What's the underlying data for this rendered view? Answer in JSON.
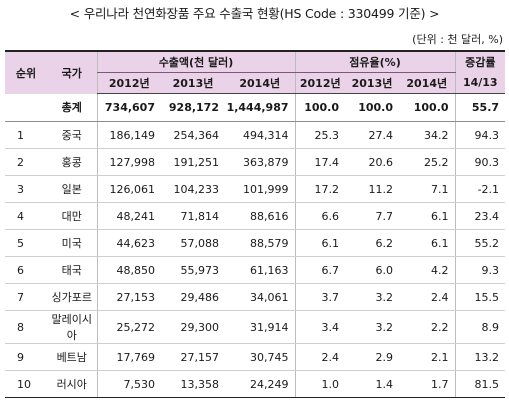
{
  "title": "< 우리나라 천연화장품 주요 수출국 현황(HS Code : 330499 기준) >",
  "unit": "(단위 : 천 달러, %)",
  "headers": {
    "rank": "순위",
    "country": "국가",
    "exports": "수출액(천 달러)",
    "share": "점유율(%)",
    "growth_top": "증감률",
    "growth_bottom": "14/13",
    "y2012": "2012년",
    "y2013": "2013년",
    "y2014": "2014년"
  },
  "total": {
    "label": "총계",
    "values": [
      "734,607",
      "928,172",
      "1,444,987",
      "100.0",
      "100.0",
      "100.0",
      "55.7"
    ]
  },
  "rows": [
    {
      "rank": "1",
      "country": "중국",
      "values": [
        "186,149",
        "254,364",
        "494,314",
        "25.3",
        "27.4",
        "34.2",
        "94.3"
      ]
    },
    {
      "rank": "2",
      "country": "홍콩",
      "values": [
        "127,998",
        "191,251",
        "363,879",
        "17.4",
        "20.6",
        "25.2",
        "90.3"
      ]
    },
    {
      "rank": "3",
      "country": "일본",
      "values": [
        "126,061",
        "104,233",
        "101,999",
        "17.2",
        "11.2",
        "7.1",
        "-2.1"
      ]
    },
    {
      "rank": "4",
      "country": "대만",
      "values": [
        "48,241",
        "71,814",
        "88,616",
        "6.6",
        "7.7",
        "6.1",
        "23.4"
      ]
    },
    {
      "rank": "5",
      "country": "미국",
      "values": [
        "44,623",
        "57,088",
        "88,579",
        "6.1",
        "6.2",
        "6.1",
        "55.2"
      ]
    },
    {
      "rank": "6",
      "country": "태국",
      "values": [
        "48,850",
        "55,973",
        "61,163",
        "6.7",
        "6.0",
        "4.2",
        "9.3"
      ]
    },
    {
      "rank": "7",
      "country": "싱가포르",
      "values": [
        "27,153",
        "29,486",
        "34,061",
        "3.7",
        "3.2",
        "2.4",
        "15.5"
      ]
    },
    {
      "rank": "8",
      "country": "말레이시아",
      "values": [
        "25,272",
        "29,300",
        "31,914",
        "3.4",
        "3.2",
        "2.2",
        "8.9"
      ]
    },
    {
      "rank": "9",
      "country": "베트남",
      "values": [
        "17,769",
        "27,157",
        "30,745",
        "2.4",
        "2.9",
        "2.1",
        "13.2"
      ]
    },
    {
      "rank": "10",
      "country": "러시아",
      "values": [
        "7,530",
        "13,358",
        "24,249",
        "1.0",
        "1.4",
        "1.7",
        "81.5"
      ]
    }
  ]
}
